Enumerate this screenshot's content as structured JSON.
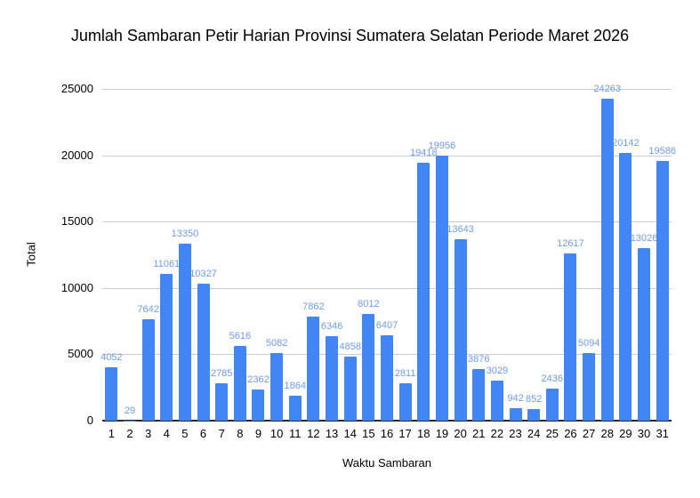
{
  "chart_data": {
    "type": "bar",
    "title": "Jumlah Sambaran Petir Harian Provinsi Sumatera Selatan Periode Maret 2026",
    "xlabel": "Waktu Sambaran",
    "ylabel": "Total",
    "categories": [
      "1",
      "2",
      "3",
      "4",
      "5",
      "6",
      "7",
      "8",
      "9",
      "10",
      "11",
      "12",
      "13",
      "14",
      "15",
      "16",
      "17",
      "18",
      "19",
      "20",
      "21",
      "22",
      "23",
      "24",
      "25",
      "26",
      "27",
      "28",
      "29",
      "30",
      "31"
    ],
    "values": [
      4052,
      29,
      7642,
      11061,
      13350,
      10327,
      2785,
      5616,
      2362,
      5082,
      1864,
      7862,
      6346,
      4858,
      8012,
      6407,
      2811,
      19418,
      19956,
      13643,
      3876,
      3029,
      942,
      852,
      2436,
      12617,
      5094,
      24263,
      20142,
      13026,
      19586
    ],
    "data_labels_shown": true,
    "ylim": [
      0,
      25000
    ],
    "yticks": [
      0,
      5000,
      10000,
      15000,
      20000,
      25000
    ],
    "grid": true,
    "legend_position": "none",
    "colors": {
      "bar": "#4285f4",
      "data_label": "#6f9bea",
      "gridline": "#cccccc",
      "axis_line": "#2a2a2a",
      "text": "#000000",
      "background": "#ffffff"
    }
  }
}
